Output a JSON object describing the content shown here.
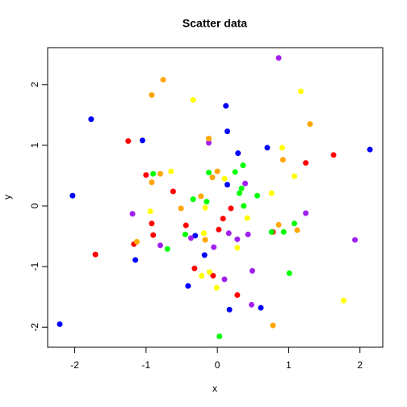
{
  "chart_data": {
    "type": "scatter",
    "title": "Scatter data",
    "x_label": "x",
    "y_label": "y",
    "xlim": [
      -2.38,
      2.32
    ],
    "ylim": [
      -2.33,
      2.61
    ],
    "xticks": [
      -2,
      -1,
      0,
      1,
      2
    ],
    "yticks": [
      -2,
      -1,
      0,
      1,
      2
    ],
    "series": [
      {
        "color": "#0000ff",
        "x": [
          -1.77,
          -1.05,
          -2.03,
          -2.21,
          -1.15,
          0.12,
          0.14,
          0.29,
          0.7,
          2.14,
          0.14,
          -0.31,
          -0.18,
          -0.41,
          0.17,
          0.61
        ],
        "y": [
          1.43,
          1.08,
          0.17,
          -1.95,
          -0.89,
          1.65,
          1.23,
          0.87,
          0.96,
          0.93,
          0.35,
          -0.49,
          -0.81,
          -1.32,
          -1.71,
          -1.68
        ]
      },
      {
        "color": "#ff0000",
        "x": [
          -1.25,
          -1.0,
          -0.62,
          -1.71,
          -1.17,
          -0.92,
          -0.9,
          -0.44,
          -0.32,
          -0.06,
          0.02,
          0.08,
          0.19,
          0.28,
          0.78,
          1.24,
          1.63
        ],
        "y": [
          1.07,
          0.51,
          0.24,
          -0.8,
          -0.63,
          -0.29,
          -0.48,
          -0.32,
          -1.03,
          -1.15,
          -0.39,
          -0.21,
          -0.04,
          -1.47,
          -0.43,
          0.71,
          0.84
        ]
      },
      {
        "color": "#00ff00",
        "x": [
          -0.9,
          -0.7,
          -0.45,
          -0.34,
          -0.15,
          -0.12,
          0.25,
          0.36,
          0.34,
          0.31,
          0.37,
          0.56,
          0.76,
          0.93,
          1.08,
          1.01,
          0.03
        ],
        "y": [
          0.53,
          -0.71,
          -0.47,
          0.11,
          0.07,
          0.55,
          0.56,
          0.67,
          0.29,
          0.21,
          0.0,
          0.17,
          -0.43,
          -0.43,
          -0.29,
          -1.11,
          -2.15
        ]
      },
      {
        "color": "#a020f0",
        "x": [
          -1.19,
          -0.8,
          -0.37,
          -0.12,
          -0.05,
          0.1,
          0.16,
          0.28,
          0.43,
          0.49,
          0.48,
          0.39,
          0.86,
          1.24,
          1.93
        ],
        "y": [
          -0.13,
          -0.65,
          -0.53,
          1.04,
          -0.68,
          -1.21,
          -0.45,
          -0.55,
          -0.47,
          -1.07,
          -1.63,
          0.37,
          2.44,
          -0.12,
          -0.56
        ]
      },
      {
        "color": "#ffff00",
        "x": [
          -0.94,
          -0.65,
          -0.34,
          -0.19,
          -0.17,
          -0.22,
          -0.11,
          -0.01,
          0.1,
          0.28,
          0.42,
          0.76,
          0.91,
          1.08,
          1.17,
          1.77
        ],
        "y": [
          -0.09,
          0.57,
          1.75,
          -0.45,
          -0.03,
          -1.15,
          -1.09,
          -1.35,
          0.45,
          -0.69,
          -0.2,
          0.21,
          0.96,
          0.49,
          1.89,
          -1.56
        ]
      },
      {
        "color": "#ffa500",
        "x": [
          -0.76,
          -0.92,
          -0.92,
          -0.8,
          -1.13,
          -0.51,
          -0.23,
          -0.12,
          -0.07,
          0.0,
          -0.17,
          0.86,
          0.92,
          1.12,
          1.3,
          0.78
        ],
        "y": [
          2.08,
          1.83,
          0.39,
          0.53,
          -0.59,
          -0.04,
          0.16,
          1.11,
          0.47,
          0.57,
          -0.56,
          -0.31,
          0.76,
          -0.4,
          1.35,
          -1.97
        ]
      }
    ]
  }
}
